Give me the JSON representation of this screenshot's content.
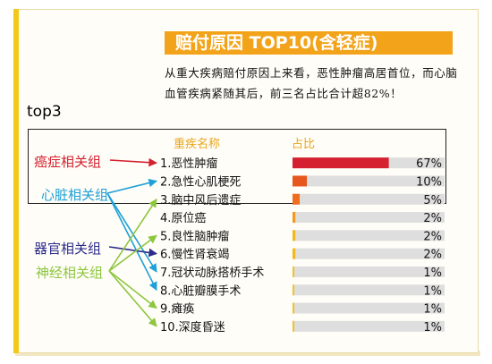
{
  "title": "赔付原因 TOP10(含轻症)",
  "intro": "从重大疾病赔付原因上来看，恶性肿瘤高居首位，而心脑血管疾病紧随其后，前三名占比合计超82%！",
  "top3_label": "top3",
  "headers": {
    "name": "重疾名称",
    "share": "占比"
  },
  "groups": [
    {
      "label": "癌症相关组",
      "color": "#d4202f"
    },
    {
      "label": "心脏相关组",
      "color": "#1ea0d8"
    },
    {
      "label": "器官相关组",
      "color": "#2c2c8c"
    },
    {
      "label": "神经相关组",
      "color": "#8dc63f"
    }
  ],
  "chart_data": {
    "type": "bar",
    "orientation": "horizontal",
    "title": "赔付原因 TOP10(含轻症)",
    "categories": [
      "1.恶性肿瘤",
      "2.急性心肌梗死",
      "3.脑中风后遗症",
      "4.原位癌",
      "5.良性脑肿瘤",
      "6.慢性肾衰竭",
      "7.冠状动脉搭桥手术",
      "8.心脏瓣膜手术",
      "9.瘫痪",
      "10.深度昏迷"
    ],
    "values": [
      67,
      10,
      5,
      2,
      2,
      2,
      1,
      1,
      1,
      1
    ],
    "value_labels": [
      "67%",
      "10%",
      "5%",
      "2%",
      "2%",
      "2%",
      "1%",
      "1%",
      "1%",
      "1%"
    ],
    "unit": "%",
    "xlim": [
      0,
      100
    ],
    "bar_colors": [
      "#d4202f",
      "#e8561f",
      "#ef6d1e",
      "#f39a1d",
      "#f3b81c",
      "#f3b81c",
      "#f3c21c",
      "#f3c21c",
      "#f3c21c",
      "#f3c21c"
    ],
    "track_color": "#dedede",
    "highlight": "top3",
    "group_links": [
      {
        "group": 0,
        "rows": [
          0
        ]
      },
      {
        "group": 1,
        "rows": [
          1,
          6,
          7
        ]
      },
      {
        "group": 2,
        "rows": [
          5
        ]
      },
      {
        "group": 3,
        "rows": [
          2,
          4,
          8,
          9
        ]
      }
    ]
  }
}
